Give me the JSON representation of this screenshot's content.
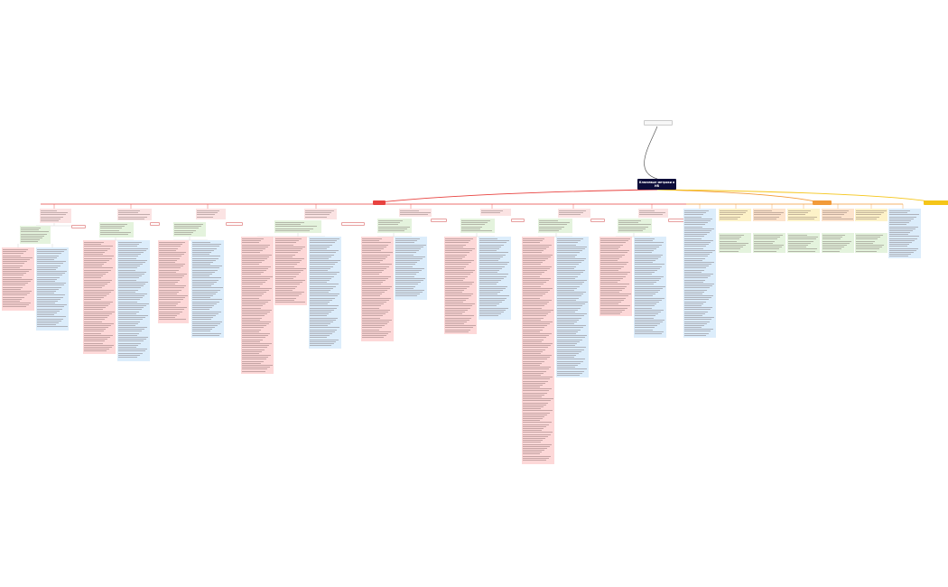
{
  "root": {
    "title": "Ключевые метрики в HR"
  },
  "top_label": "",
  "tags": {
    "red": "",
    "orange": "",
    "yellow": ""
  },
  "colors": {
    "red": "#e8423f",
    "orange": "#f29a38",
    "yellow": "#f5c518",
    "root_bg": "#0d0d3a"
  }
}
